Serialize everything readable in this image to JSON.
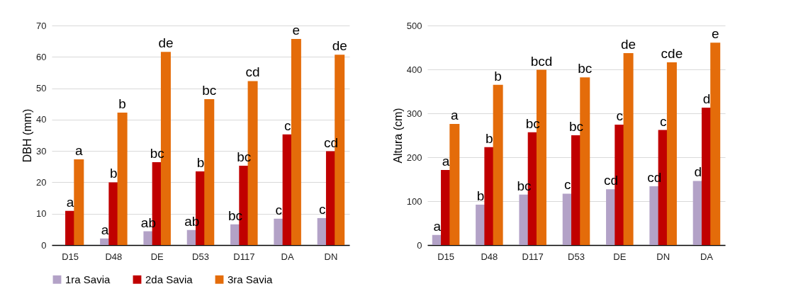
{
  "chart_data": [
    {
      "type": "bar",
      "ylabel": "DBH (mm)",
      "categories": [
        "D15",
        "D48",
        "DE",
        "D53",
        "D117",
        "DA",
        "DN"
      ],
      "ylim": [
        0,
        70
      ],
      "yticks": [
        0,
        10,
        20,
        30,
        40,
        50,
        60,
        70
      ],
      "grid": "y",
      "legend": "bottom",
      "series": [
        {
          "name": "1ra Savia",
          "color": "#b3a2c7",
          "values": [
            null,
            2.1,
            4.4,
            4.8,
            6.6,
            8.4,
            8.6
          ],
          "value_labels": [
            null,
            "a",
            "ab",
            "ab",
            "bc",
            "c",
            "c"
          ]
        },
        {
          "name": "2da Savia",
          "color": "#c00000",
          "values": [
            10.9,
            20.0,
            26.4,
            23.5,
            25.3,
            35.3,
            29.9
          ],
          "value_labels": [
            "a",
            "b",
            "bc",
            "b",
            "bc",
            "c",
            "cd"
          ]
        },
        {
          "name": "3ra Savia",
          "color": "#e46c0a",
          "values": [
            27.3,
            42.2,
            61.6,
            46.5,
            52.3,
            65.7,
            60.7
          ],
          "value_labels": [
            "a",
            "b",
            "de",
            "bc",
            "cd",
            "e",
            "de"
          ]
        }
      ]
    },
    {
      "type": "bar",
      "ylabel": "Altura (cm)",
      "categories": [
        "D15",
        "D48",
        "D117",
        "D53",
        "DE",
        "DN",
        "DA"
      ],
      "ylim": [
        0,
        500
      ],
      "yticks": [
        0,
        100,
        200,
        300,
        400,
        500
      ],
      "grid": "y",
      "legend": "bottom",
      "series": [
        {
          "name": "1ra Savia",
          "color": "#b3a2c7",
          "values": [
            23,
            92,
            115,
            117,
            127,
            134,
            146
          ],
          "value_labels": [
            "a",
            "b",
            "bc",
            "c",
            "cd",
            "cd",
            "d"
          ]
        },
        {
          "name": "2da Savia",
          "color": "#c00000",
          "values": [
            171,
            223,
            257,
            250,
            274,
            262,
            313
          ],
          "value_labels": [
            "a",
            "b",
            "bc",
            "bc",
            "c",
            "c",
            "d"
          ]
        },
        {
          "name": "3ra Savia",
          "color": "#e46c0a",
          "values": [
            276,
            365,
            399,
            382,
            437,
            416,
            461
          ],
          "value_labels": [
            "a",
            "b",
            "bcd",
            "bc",
            "de",
            "cde",
            "e"
          ]
        }
      ]
    }
  ]
}
